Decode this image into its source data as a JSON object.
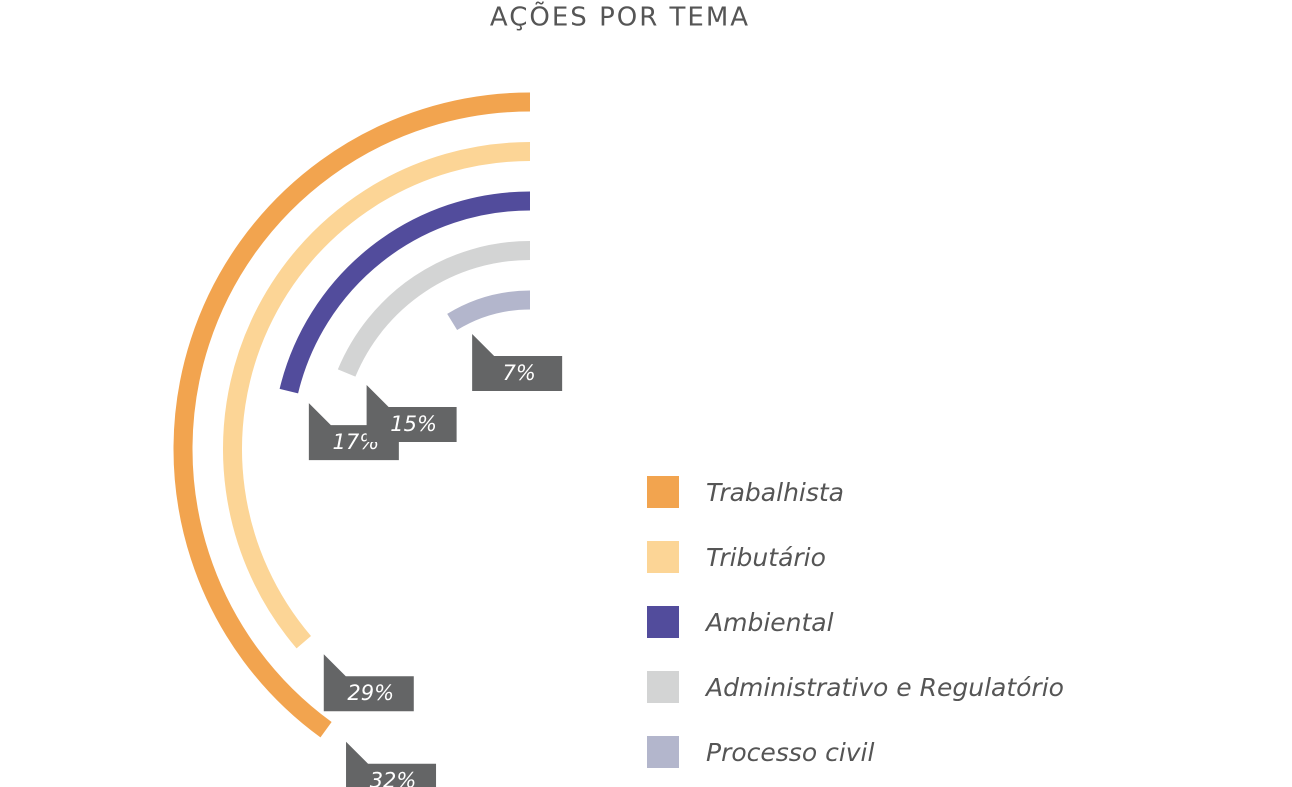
{
  "chart_data": {
    "type": "radial_bar",
    "title": "AÇÕES POR TEMA",
    "categories": [
      "Trabalhista",
      "Tributário",
      "Ambiental",
      "Administrativo e Regulatório",
      "Processo civil"
    ],
    "values": [
      32,
      29,
      17,
      15,
      7
    ],
    "value_labels": [
      "32%",
      "29%",
      "17%",
      "15%",
      "7%"
    ],
    "colors": [
      "#f2a44f",
      "#fcd596",
      "#524c9c",
      "#d3d4d4",
      "#b3b6cc"
    ],
    "legend": "right"
  }
}
